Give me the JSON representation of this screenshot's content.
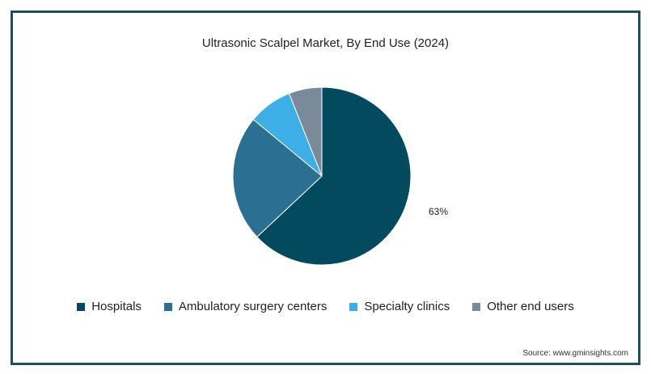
{
  "chart_data": {
    "type": "pie",
    "title": "Ultrasonic Scalpel Market, By End Use (2024)",
    "categories": [
      "Hospitals",
      "Ambulatory surgery centers",
      "Specialty clinics",
      "Other end users"
    ],
    "values": [
      63,
      23,
      8,
      6
    ],
    "colors": [
      "#034a5e",
      "#2b6f92",
      "#3eaee6",
      "#7a8a9a"
    ],
    "data_labels": [
      "63%",
      "",
      "",
      ""
    ],
    "legend_position": "bottom"
  },
  "source": "Source: www.gminsights.com"
}
